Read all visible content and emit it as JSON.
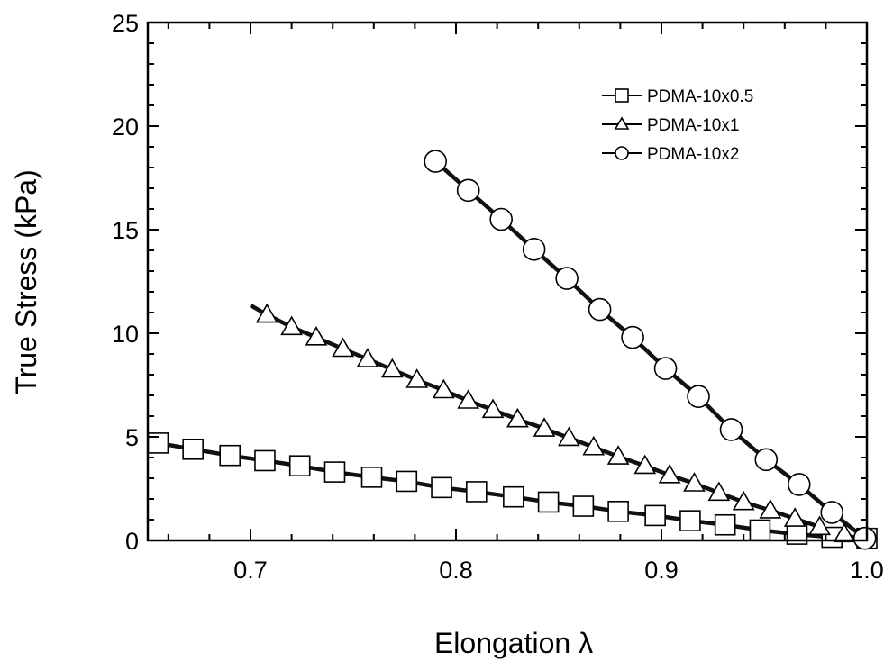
{
  "chart_data": {
    "type": "line",
    "title": "",
    "xlabel": "Elongation λ",
    "ylabel": "True Stress (kPa)",
    "xlim": [
      0.65,
      1.0
    ],
    "ylim": [
      0,
      25
    ],
    "x_ticks": [
      0.7,
      0.8,
      0.9,
      1.0
    ],
    "x_tick_labels": [
      "0.7",
      "0.8",
      "0.9",
      "1.0"
    ],
    "y_ticks": [
      0,
      5,
      10,
      15,
      20,
      25
    ],
    "y_tick_labels": [
      "0",
      "5",
      "10",
      "15",
      "20",
      "25"
    ],
    "grid": false,
    "legend_position": "top-right",
    "series": [
      {
        "name": "PDMA-10x0.5",
        "marker": "square",
        "x": [
          0.655,
          0.672,
          0.69,
          0.707,
          0.724,
          0.741,
          0.759,
          0.776,
          0.793,
          0.81,
          0.828,
          0.845,
          0.862,
          0.879,
          0.897,
          0.914,
          0.931,
          0.948,
          0.966,
          0.983,
          1.0
        ],
        "y": [
          4.7,
          4.4,
          4.1,
          3.85,
          3.6,
          3.3,
          3.05,
          2.85,
          2.55,
          2.35,
          2.1,
          1.85,
          1.65,
          1.4,
          1.2,
          0.95,
          0.75,
          0.5,
          0.3,
          0.15,
          0.1
        ]
      },
      {
        "name": "PDMA-10x1",
        "marker": "triangle",
        "x": [
          0.708,
          0.72,
          0.732,
          0.745,
          0.757,
          0.769,
          0.781,
          0.794,
          0.806,
          0.818,
          0.83,
          0.843,
          0.855,
          0.867,
          0.879,
          0.892,
          0.904,
          0.916,
          0.928,
          0.94,
          0.953,
          0.965,
          0.977,
          0.989
        ],
        "y": [
          10.9,
          10.3,
          9.8,
          9.25,
          8.75,
          8.25,
          7.75,
          7.25,
          6.75,
          6.3,
          5.85,
          5.4,
          4.95,
          4.5,
          4.05,
          3.6,
          3.15,
          2.75,
          2.3,
          1.85,
          1.45,
          1.05,
          0.65,
          0.3
        ]
      },
      {
        "name": "PDMA-10x2",
        "marker": "circle",
        "x": [
          0.79,
          0.806,
          0.822,
          0.838,
          0.854,
          0.87,
          0.886,
          0.902,
          0.918,
          0.934,
          0.951,
          0.967,
          0.983,
          0.999
        ],
        "y": [
          18.3,
          16.9,
          15.5,
          14.05,
          12.65,
          11.15,
          9.8,
          8.3,
          6.95,
          5.35,
          3.9,
          2.7,
          1.35,
          0.1
        ]
      }
    ],
    "curve_extents": [
      [
        [
          0.652,
          4.8
        ],
        [
          1.0,
          0.05
        ]
      ],
      [
        [
          0.7,
          11.35
        ],
        [
          0.995,
          0.1
        ]
      ],
      [
        [
          0.79,
          18.3
        ],
        [
          1.0,
          0.0
        ]
      ]
    ]
  }
}
